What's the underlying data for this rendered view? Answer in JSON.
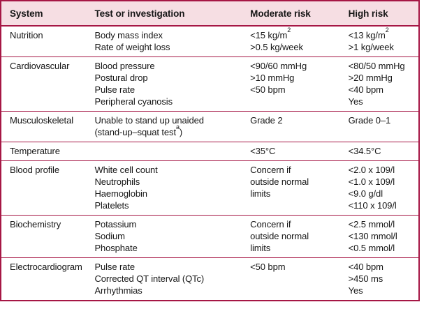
{
  "table": {
    "columns": [
      "System",
      "Test or investigation",
      "Moderate risk",
      "High risk"
    ],
    "rows": [
      {
        "system": "Nutrition",
        "tests": [
          "Body mass index",
          "Rate of weight loss"
        ],
        "moderate": [
          "<15 kg/m^2^",
          ">0.5 kg/week"
        ],
        "high": [
          "<13 kg/m^2^",
          ">1 kg/week"
        ]
      },
      {
        "system": "Cardiovascular",
        "tests": [
          "Blood pressure",
          "Postural drop",
          "Pulse rate",
          "Peripheral cyanosis"
        ],
        "moderate": [
          "<90/60 mmHg",
          ">10 mmHg",
          "<50 bpm",
          ""
        ],
        "high": [
          "<80/50 mmHg",
          ">20 mmHg",
          "<40 bpm",
          "Yes"
        ]
      },
      {
        "system": "Musculoskeletal",
        "tests": [
          "Unable to stand up unaided",
          "(stand-up–squat test^a^)"
        ],
        "moderate": [
          "Grade 2"
        ],
        "high": [
          "Grade 0–1"
        ]
      },
      {
        "system": "Temperature",
        "tests": [],
        "moderate": [
          "<35°C"
        ],
        "high": [
          "<34.5°C"
        ]
      },
      {
        "system": "Blood profile",
        "tests": [
          "White cell count",
          "Neutrophils",
          "Haemoglobin",
          "Platelets"
        ],
        "moderate": [
          "Concern if",
          "outside normal",
          "limits"
        ],
        "high": [
          "<2.0 x 109/l",
          "<1.0 x 109/l",
          "<9.0 g/dl",
          "<110 x 109/l"
        ]
      },
      {
        "system": "Biochemistry",
        "tests": [
          "Potassium",
          "Sodium",
          "Phosphate"
        ],
        "moderate": [
          "Concern if",
          "outside normal",
          "limits"
        ],
        "high": [
          "<2.5 mmol/l",
          "<130 mmol/l",
          "<0.5 mmol/l"
        ]
      },
      {
        "system": "Electrocardiogram",
        "tests": [
          "Pulse rate",
          "Corrected QT interval (QTc)",
          "Arrhythmias"
        ],
        "moderate": [
          "<50 bpm"
        ],
        "high": [
          "<40 bpm",
          ">450 ms",
          "Yes"
        ]
      }
    ],
    "colors": {
      "border": "#A61745",
      "header_background": "#F6DEE3",
      "body_background": "#FFFFFF",
      "text": "#161616"
    }
  }
}
